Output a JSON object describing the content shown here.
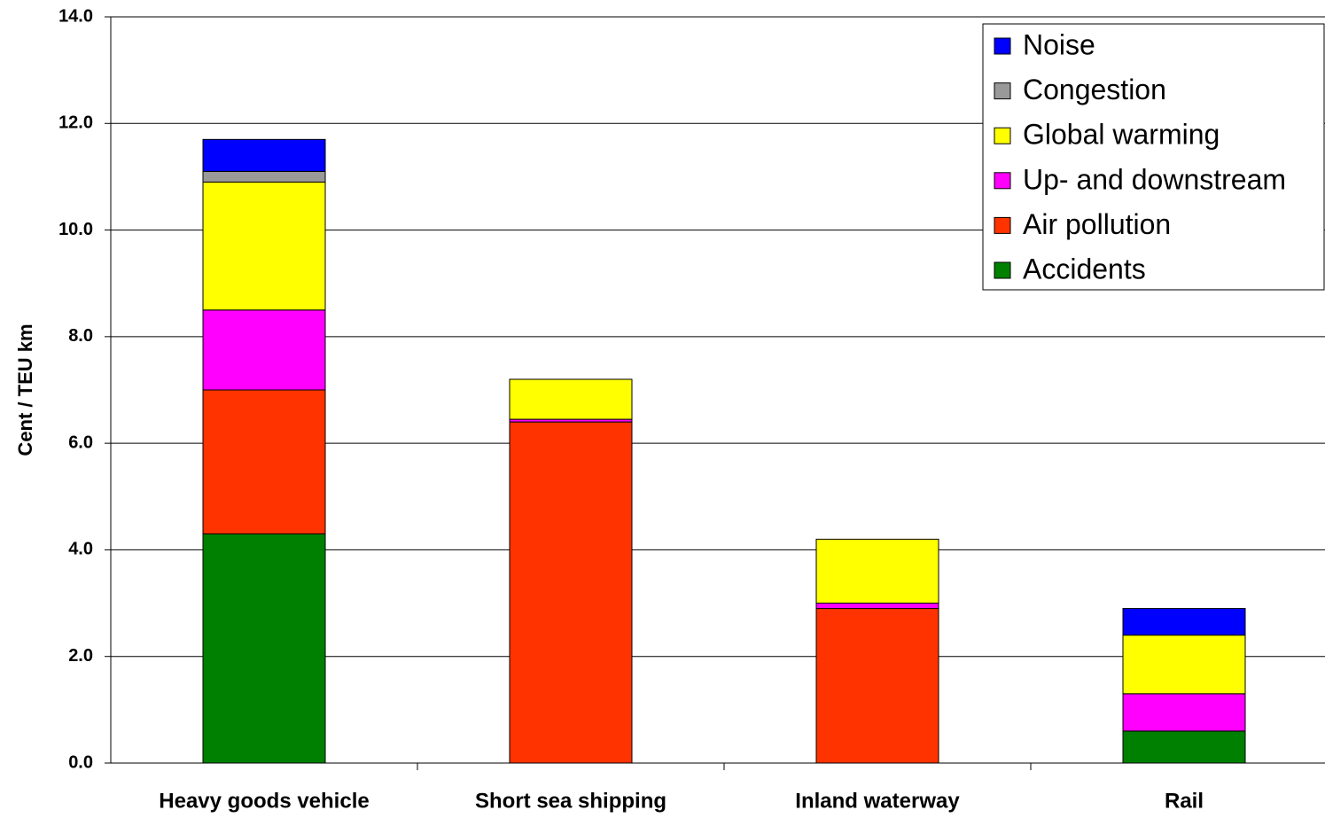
{
  "chart_data": {
    "type": "stacked-bar",
    "y_label": "Cent / TEU km",
    "categories": [
      "Heavy goods vehicle",
      "Short sea shipping",
      "Inland waterway",
      "Rail"
    ],
    "series": [
      {
        "name": "Accidents",
        "color": "#008000",
        "values": [
          4.3,
          0,
          0,
          0.6
        ]
      },
      {
        "name": "Air pollution",
        "color": "#ff3300",
        "values": [
          2.7,
          6.4,
          2.9,
          0
        ]
      },
      {
        "name": "Up- and downstream",
        "color": "#ff00ff",
        "values": [
          1.5,
          0.05,
          0.1,
          0.7
        ]
      },
      {
        "name": "Global warming",
        "color": "#ffff00",
        "values": [
          2.4,
          0.75,
          1.2,
          1.1
        ]
      },
      {
        "name": "Congestion",
        "color": "#999999",
        "values": [
          0.2,
          0,
          0,
          0
        ]
      },
      {
        "name": "Noise",
        "color": "#0000ff",
        "values": [
          0.6,
          0,
          0,
          0.5
        ]
      }
    ],
    "ylim": [
      0,
      14
    ],
    "yticks": [
      {
        "value": 0,
        "label": "0.0"
      },
      {
        "value": 2,
        "label": "2.0"
      },
      {
        "value": 4,
        "label": "4.0"
      },
      {
        "value": 6,
        "label": "6.0"
      },
      {
        "value": 8,
        "label": "8.0"
      },
      {
        "value": 10,
        "label": "10.0"
      },
      {
        "value": 12,
        "label": "12.0"
      },
      {
        "value": 14,
        "label": "14.0"
      }
    ],
    "grid": true,
    "legend": "top-right"
  }
}
